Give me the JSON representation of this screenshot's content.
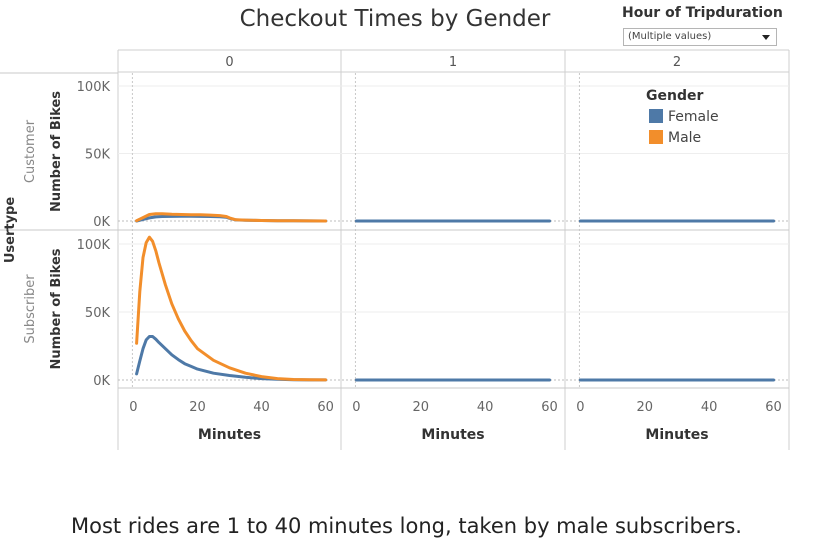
{
  "title": "Checkout Times by Gender",
  "filter": {
    "label": "Hour of Tripduration",
    "value": "(Multiple values)"
  },
  "caption": "Most rides are 1 to 40 minutes long, taken by male subscribers.",
  "chart_data": {
    "type": "line",
    "title": "Checkout Times by Gender",
    "column_header": "",
    "columns": [
      "0",
      "1",
      "2"
    ],
    "row_header": "Usertype",
    "rows": [
      "Customer",
      "Subscriber"
    ],
    "xlabel": "Minutes",
    "ylabel": "Number of Bikes",
    "x_ticks": [
      "0",
      "20",
      "40",
      "60"
    ],
    "y_ticks": [
      "0K",
      "50K",
      "100K"
    ],
    "xlim": [
      -2,
      62
    ],
    "ylim": [
      0,
      107000
    ],
    "grid": true,
    "legend": {
      "title": "Gender",
      "position": "top-right",
      "entries": [
        {
          "name": "Female",
          "color": "#4e79a7"
        },
        {
          "name": "Male",
          "color": "#f28e2b"
        }
      ]
    },
    "panels": [
      {
        "row": "Customer",
        "column": "0",
        "series": [
          {
            "name": "Female",
            "color": "#4e79a7",
            "x": [
              1,
              3,
              5,
              7,
              9,
              12,
              15,
              18,
              21,
              24,
              27,
              29,
              30,
              32,
              35,
              40,
              45,
              50,
              55,
              60
            ],
            "y": [
              0,
              1200,
              2300,
              3000,
              3300,
              3400,
              3500,
              3500,
              3400,
              3300,
              3100,
              2800,
              2000,
              800,
              600,
              400,
              250,
              120,
              60,
              0
            ]
          },
          {
            "name": "Male",
            "color": "#f28e2b",
            "x": [
              1,
              3,
              5,
              7,
              9,
              12,
              15,
              18,
              21,
              24,
              27,
              29,
              30,
              32,
              35,
              40,
              45,
              50,
              55,
              60
            ],
            "y": [
              200,
              2500,
              4800,
              5400,
              5300,
              5000,
              4800,
              4700,
              4600,
              4400,
              4000,
              3300,
              2300,
              900,
              650,
              400,
              250,
              120,
              60,
              0
            ]
          }
        ]
      },
      {
        "row": "Customer",
        "column": "1",
        "series": [
          {
            "name": "Female",
            "color": "#4e79a7",
            "x": [
              0,
              60
            ],
            "y": [
              0,
              0
            ]
          }
        ]
      },
      {
        "row": "Customer",
        "column": "2",
        "series": [
          {
            "name": "Female",
            "color": "#4e79a7",
            "x": [
              0,
              60
            ],
            "y": [
              0,
              0
            ]
          }
        ]
      },
      {
        "row": "Subscriber",
        "column": "0",
        "series": [
          {
            "name": "Female",
            "color": "#4e79a7",
            "x": [
              1,
              2,
              3,
              4,
              5,
              6,
              7,
              8,
              10,
              12,
              14,
              16,
              18,
              20,
              25,
              30,
              35,
              40,
              45,
              50,
              55,
              60
            ],
            "y": [
              4500,
              14000,
              23000,
              29500,
              32000,
              32000,
              30000,
              27500,
              23000,
              18500,
              15000,
              12000,
              10000,
              8000,
              5000,
              3300,
              2000,
              1000,
              500,
              200,
              100,
              50
            ]
          },
          {
            "name": "Male",
            "color": "#f28e2b",
            "x": [
              1,
              2,
              3,
              4,
              5,
              6,
              7,
              8,
              10,
              12,
              14,
              16,
              18,
              20,
              25,
              30,
              35,
              40,
              45,
              50,
              55,
              60
            ],
            "y": [
              27000,
              65000,
              90000,
              101000,
              105000,
              102000,
              95000,
              86000,
              70000,
              56000,
              45000,
              36000,
              29000,
              23000,
              14500,
              9000,
              5000,
              2500,
              1000,
              400,
              150,
              60
            ]
          }
        ]
      },
      {
        "row": "Subscriber",
        "column": "1",
        "series": [
          {
            "name": "Female",
            "color": "#4e79a7",
            "x": [
              0,
              60
            ],
            "y": [
              0,
              0
            ]
          }
        ]
      },
      {
        "row": "Subscriber",
        "column": "2",
        "series": [
          {
            "name": "Female",
            "color": "#4e79a7",
            "x": [
              0,
              60
            ],
            "y": [
              0,
              0
            ]
          }
        ]
      }
    ]
  }
}
